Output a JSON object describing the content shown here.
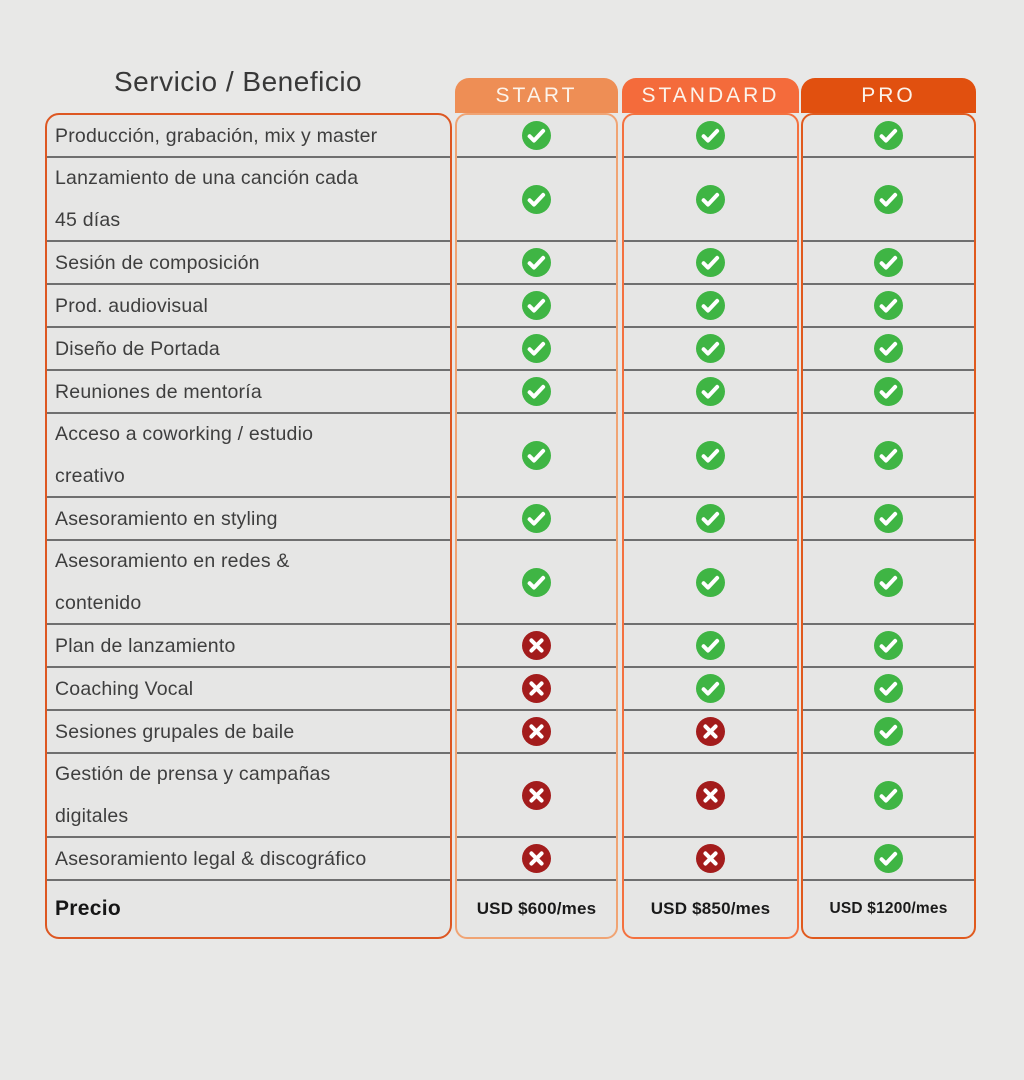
{
  "title": "Servicio / Beneficio",
  "price_row": {
    "label": "Precio"
  },
  "plans": [
    {
      "name": "START",
      "header_color": "#ee8e55",
      "border_color": "#f0a474",
      "price": "USD $600/mes"
    },
    {
      "name": "STANDARD",
      "header_color": "#f46b3b",
      "border_color": "#f4713f",
      "price": "USD $850/mes"
    },
    {
      "name": "PRO",
      "header_color": "#e1500f",
      "border_color": "#e05a1e",
      "price": "USD $1200/mes"
    }
  ],
  "features": [
    {
      "label": "Producción, grabación, mix y master",
      "double": false,
      "values": [
        true,
        true,
        true
      ]
    },
    {
      "label": "Lanzamiento de una canción cada\n45 días",
      "double": true,
      "values": [
        true,
        true,
        true
      ]
    },
    {
      "label": "Sesión de composición",
      "double": false,
      "values": [
        true,
        true,
        true
      ]
    },
    {
      "label": "Prod. audiovisual",
      "double": false,
      "values": [
        true,
        true,
        true
      ]
    },
    {
      "label": "Diseño de Portada",
      "double": false,
      "values": [
        true,
        true,
        true
      ]
    },
    {
      "label": "Reuniones de mentoría",
      "double": false,
      "values": [
        true,
        true,
        true
      ]
    },
    {
      "label": "Acceso a coworking / estudio\ncreativo",
      "double": true,
      "values": [
        true,
        true,
        true
      ]
    },
    {
      "label": "Asesoramiento en styling",
      "double": false,
      "values": [
        true,
        true,
        true
      ]
    },
    {
      "label": "Asesoramiento en redes &\ncontenido",
      "double": true,
      "values": [
        true,
        true,
        true
      ]
    },
    {
      "label": "Plan de lanzamiento",
      "double": false,
      "values": [
        false,
        true,
        true
      ]
    },
    {
      "label": "Coaching Vocal",
      "double": false,
      "values": [
        false,
        true,
        true
      ]
    },
    {
      "label": "Sesiones grupales de baile",
      "double": false,
      "values": [
        false,
        false,
        true
      ]
    },
    {
      "label": "Gestión de prensa y campañas\ndigitales",
      "double": true,
      "values": [
        false,
        false,
        true
      ]
    },
    {
      "label": "Asesoramiento legal & discográfico",
      "double": false,
      "values": [
        false,
        false,
        true
      ]
    }
  ],
  "icons": {
    "check": "check-icon",
    "cross": "cross-icon"
  },
  "colors": {
    "page_bg": "#e8e8e7",
    "separator": "#6f6f6f",
    "check_green": "#3fb544",
    "cross_red": "#a31c1c",
    "left_card_border": "#dd5722",
    "title_text": "#383838",
    "label_text": "#3e3e3e",
    "header_text": "#fcf3ea"
  }
}
